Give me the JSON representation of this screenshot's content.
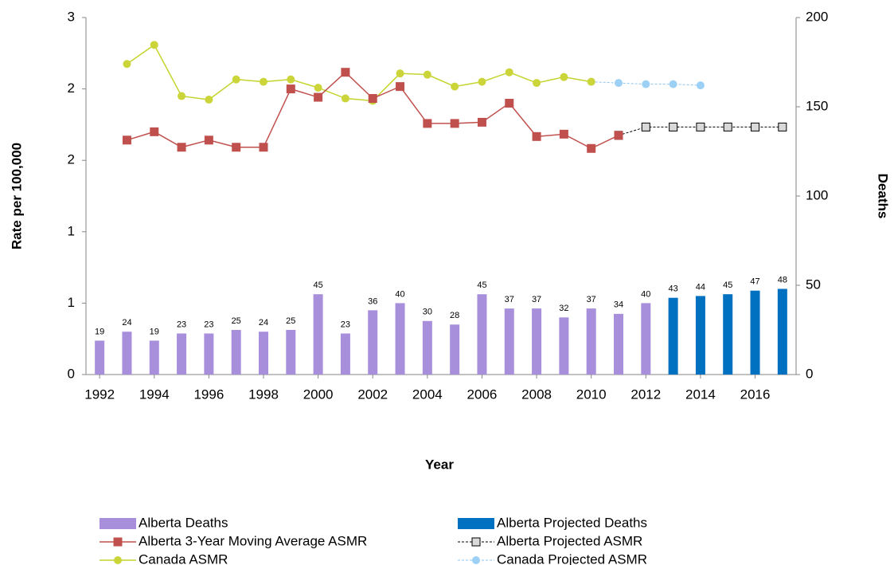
{
  "chart_data": {
    "type": "bar_line",
    "x_label": "Year",
    "y_label": "Rate per 100,000",
    "y2_label": "Deaths",
    "x": [
      1992,
      1993,
      1994,
      1995,
      1996,
      1997,
      1998,
      1999,
      2000,
      2001,
      2002,
      2003,
      2004,
      2005,
      2006,
      2007,
      2008,
      2009,
      2010,
      2011,
      2012,
      2013,
      2014,
      2015,
      2016,
      2017
    ],
    "xlim": [
      1991.5,
      2017.5
    ],
    "xticks": [
      1992,
      1994,
      1996,
      1998,
      2000,
      2002,
      2004,
      2006,
      2008,
      2010,
      2012,
      2014,
      2016
    ],
    "ylim": [
      0,
      3
    ],
    "yticks": [
      0,
      {
        "value": 0.6,
        "label": "1"
      },
      {
        "value": 1.2,
        "label": "1"
      },
      {
        "value": 1.8,
        "label": "2"
      },
      {
        "value": 2.4,
        "label": "2"
      },
      3
    ],
    "y2lim": [
      0,
      200
    ],
    "y2ticks": [
      0,
      50,
      100,
      150,
      200
    ],
    "grid": false,
    "legend": "bottom",
    "series": [
      {
        "name": "Alberta Deaths",
        "type": "bar",
        "axis": "y2",
        "color": "#a78fdc",
        "values": [
          19,
          24,
          19,
          23,
          23,
          25,
          24,
          25,
          45,
          23,
          36,
          40,
          30,
          28,
          45,
          37,
          37,
          32,
          37,
          34,
          40,
          null,
          null,
          null,
          null,
          null
        ]
      },
      {
        "name": "Alberta Projected Deaths",
        "type": "bar",
        "axis": "y2",
        "color": "#0070c0",
        "values": [
          null,
          null,
          null,
          null,
          null,
          null,
          null,
          null,
          null,
          null,
          null,
          null,
          null,
          null,
          null,
          null,
          null,
          null,
          null,
          null,
          null,
          43,
          44,
          45,
          47,
          48
        ]
      },
      {
        "name": "Alberta 3-Year Moving Average ASMR",
        "type": "line",
        "axis": "y",
        "color": "#c0504d",
        "marker": "square",
        "marker_color": "#c0504d",
        "dashed": false,
        "values": [
          null,
          1.97,
          2.04,
          1.91,
          1.97,
          1.91,
          1.91,
          2.4,
          2.33,
          2.54,
          2.32,
          2.42,
          2.11,
          2.11,
          2.12,
          2.28,
          2.0,
          2.02,
          1.9,
          2.01,
          null,
          null,
          null,
          null,
          null,
          null
        ]
      },
      {
        "name": "Alberta Projected ASMR",
        "type": "line",
        "axis": "y",
        "color": "#000000",
        "marker": "square",
        "marker_color": "#d9d9d9",
        "dashed": true,
        "values": [
          null,
          null,
          null,
          null,
          null,
          null,
          null,
          null,
          null,
          null,
          null,
          null,
          null,
          null,
          null,
          null,
          null,
          null,
          null,
          2.01,
          2.08,
          2.08,
          2.08,
          2.08,
          2.08,
          2.08
        ]
      },
      {
        "name": "Canada ASMR",
        "type": "line",
        "axis": "y",
        "color": "#c4d42c",
        "marker": "circle",
        "marker_color": "#cbd53a",
        "dashed": false,
        "values": [
          null,
          2.61,
          2.77,
          2.34,
          2.31,
          2.48,
          2.46,
          2.48,
          2.41,
          2.32,
          2.3,
          2.53,
          2.52,
          2.42,
          2.46,
          2.54,
          2.45,
          2.5,
          2.46,
          null,
          null,
          null,
          null,
          null,
          null,
          null
        ]
      },
      {
        "name": "Canada Projected ASMR",
        "type": "line",
        "axis": "y",
        "color": "#8ec5f0",
        "marker": "circle",
        "marker_color": "#9dd0f5",
        "dashed": true,
        "values": [
          null,
          null,
          null,
          null,
          null,
          null,
          null,
          null,
          null,
          null,
          null,
          null,
          null,
          null,
          null,
          null,
          null,
          null,
          2.46,
          2.45,
          2.44,
          2.44,
          2.43,
          null,
          null,
          null
        ]
      }
    ]
  }
}
